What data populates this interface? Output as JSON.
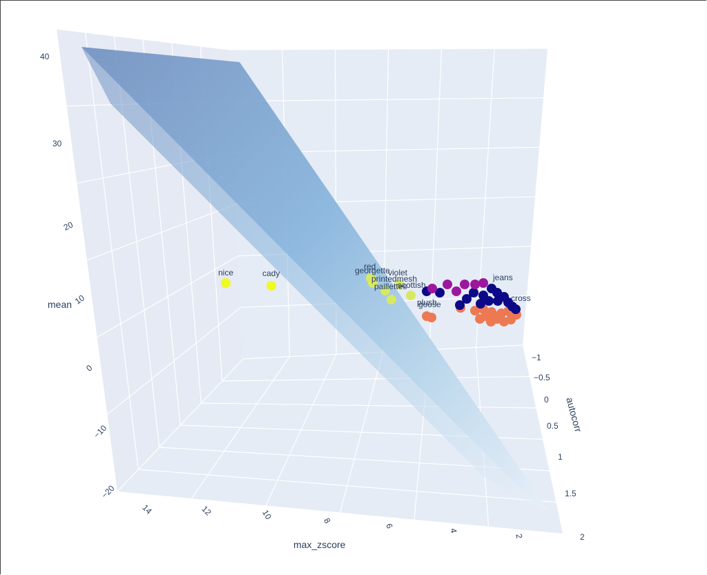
{
  "chart_data": {
    "type": "scatter3d",
    "axes": {
      "x": {
        "title": "max_zscore",
        "ticks": [
          "14",
          "12",
          "10",
          "8",
          "6",
          "4",
          "2"
        ]
      },
      "y": {
        "title": "autocorr",
        "ticks": [
          "−1",
          "−0.5",
          "0",
          "0.5",
          "1",
          "1.5",
          "2"
        ]
      },
      "z": {
        "title": "mean",
        "ticks": [
          "40",
          "30",
          "20",
          "10",
          "0",
          "−10",
          "−20"
        ]
      }
    },
    "colors": {
      "cluster_0": "#0d0887",
      "cluster_1": "#9c179e",
      "cluster_2": "#ed7953",
      "cluster_3": "#f0f921",
      "cluster_3b": "#d8e863",
      "plane": "#7fa8d8"
    },
    "labeled_points": [
      {
        "text": "nice",
        "cluster": "cluster_3"
      },
      {
        "text": "cady",
        "cluster": "cluster_3"
      },
      {
        "text": "red",
        "cluster": "cluster_3b"
      },
      {
        "text": "georgette",
        "cluster": "cluster_3b"
      },
      {
        "text": "violet",
        "cluster": "cluster_3b"
      },
      {
        "text": "printedmesh",
        "cluster": "cluster_3b"
      },
      {
        "text": "paillettes",
        "cluster": "cluster_3b"
      },
      {
        "text": "scottish",
        "cluster": "cluster_3b"
      },
      {
        "text": "plush",
        "cluster": "cluster_2"
      },
      {
        "text": "goose",
        "cluster": "cluster_2"
      },
      {
        "text": "jeans",
        "cluster": "cluster_0"
      },
      {
        "text": "cross",
        "cluster": "cluster_0"
      }
    ],
    "grid": true,
    "regression_plane": true
  }
}
